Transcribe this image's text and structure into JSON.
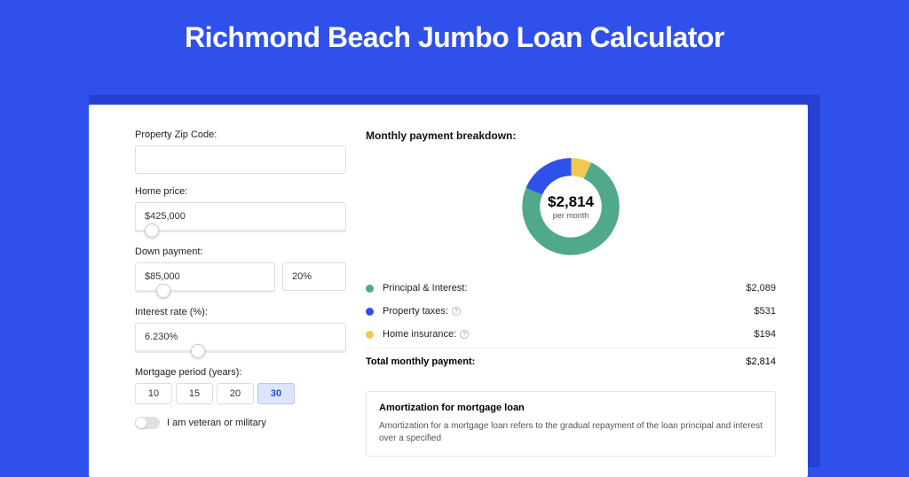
{
  "title": "Richmond Beach Jumbo Loan Calculator",
  "colors": {
    "page_bg": "#3050eb",
    "shadow": "#2840d0",
    "card_bg": "#ffffff",
    "slider_track": "#e5e8f5",
    "period_active_bg": "#dbe4fb"
  },
  "form": {
    "zip": {
      "label": "Property Zip Code:",
      "value": ""
    },
    "home_price": {
      "label": "Home price:",
      "value": "$425,000",
      "slider_pos_pct": 8
    },
    "down_payment": {
      "label": "Down payment:",
      "amount": "$85,000",
      "pct": "20%",
      "slider_pos_pct": 20
    },
    "interest_rate": {
      "label": "Interest rate (%):",
      "value": "6.230%",
      "slider_pos_pct": 30
    },
    "mortgage_period": {
      "label": "Mortgage period (years):",
      "options": [
        "10",
        "15",
        "20",
        "30"
      ],
      "selected": "30"
    },
    "veteran": {
      "label": "I am veteran or military",
      "checked": false
    }
  },
  "breakdown": {
    "title": "Monthly payment breakdown:",
    "center_amount": "$2,814",
    "center_sub": "per month",
    "donut": {
      "slices": [
        {
          "key": "principal_interest",
          "value": 2089,
          "color": "#4fa98a"
        },
        {
          "key": "property_taxes",
          "value": 531,
          "color": "#3050eb"
        },
        {
          "key": "home_insurance",
          "value": 194,
          "color": "#f0c94f"
        }
      ],
      "stroke_width": 20
    },
    "items": [
      {
        "label": "Principal & Interest:",
        "value": "$2,089",
        "color": "#4fa98a",
        "info": false
      },
      {
        "label": "Property taxes:",
        "value": "$531",
        "color": "#3050eb",
        "info": true
      },
      {
        "label": "Home insurance:",
        "value": "$194",
        "color": "#f0c94f",
        "info": true
      }
    ],
    "total": {
      "label": "Total monthly payment:",
      "value": "$2,814"
    }
  },
  "amortization": {
    "title": "Amortization for mortgage loan",
    "text": "Amortization for a mortgage loan refers to the gradual repayment of the loan principal and interest over a specified"
  }
}
